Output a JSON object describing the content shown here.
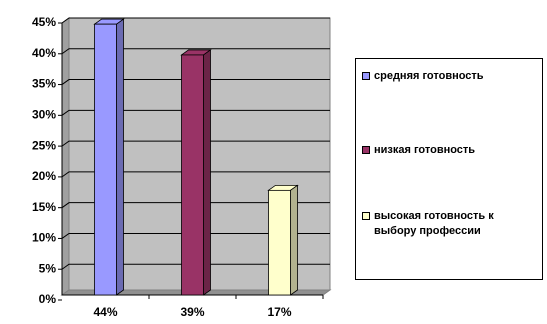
{
  "chart_data": {
    "type": "bar",
    "categories": [
      "44%",
      "39%",
      "17%"
    ],
    "series": [
      {
        "name": "средняя готовность",
        "color": "#9999ff",
        "values": [
          44,
          null,
          null
        ]
      },
      {
        "name": "низкая готовность",
        "color": "#993366",
        "values": [
          null,
          39,
          null
        ]
      },
      {
        "name": "высокая готовность к выбору профессии",
        "color": "#ffffcc",
        "values": [
          null,
          null,
          17
        ]
      }
    ],
    "ylim": [
      0,
      45
    ],
    "yticks": [
      {
        "value": 0,
        "label": "0%"
      },
      {
        "value": 5,
        "label": "5%"
      },
      {
        "value": 10,
        "label": "10%"
      },
      {
        "value": 15,
        "label": "15%"
      },
      {
        "value": 20,
        "label": "20%"
      },
      {
        "value": 25,
        "label": "25%"
      },
      {
        "value": 30,
        "label": "30%"
      },
      {
        "value": 35,
        "label": "35%"
      },
      {
        "value": 40,
        "label": "40%"
      },
      {
        "value": 45,
        "label": "45%"
      }
    ],
    "grid": true,
    "legend": "right"
  }
}
